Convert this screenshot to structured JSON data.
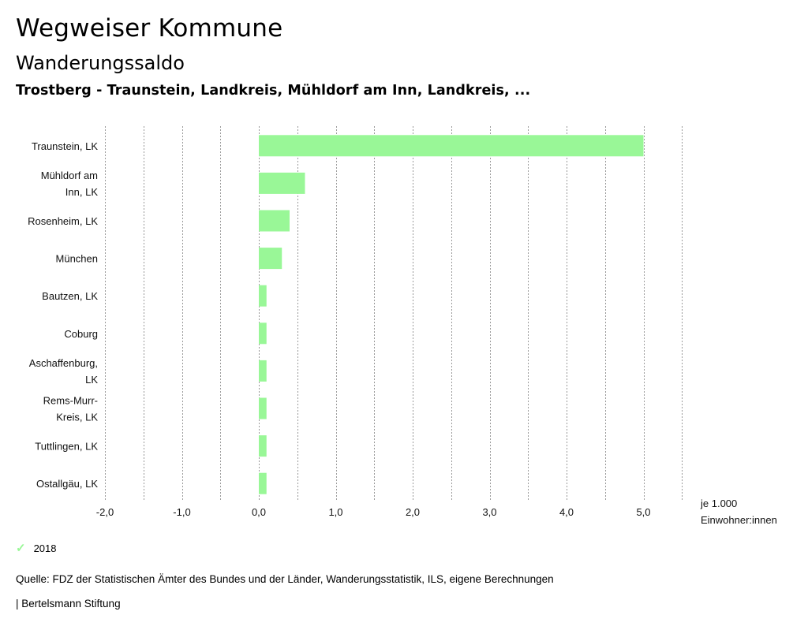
{
  "header": {
    "app_title": "Wegweiser Kommune",
    "chart_title": "Wanderungssaldo",
    "subtitle": "Trostberg - Traunstein, Landkreis, Mühldorf am Inn, Landkreis, ..."
  },
  "chart_data": {
    "type": "bar",
    "orientation": "horizontal",
    "title": "Wanderungssaldo",
    "categories": [
      [
        "Traunstein, LK"
      ],
      [
        "Mühldorf am",
        "Inn, LK"
      ],
      [
        "Rosenheim, LK"
      ],
      [
        "München"
      ],
      [
        "Bautzen, LK"
      ],
      [
        "Coburg"
      ],
      [
        "Aschaffenburg,",
        "LK"
      ],
      [
        "Rems-Murr-",
        "Kreis, LK"
      ],
      [
        "Tuttlingen, LK"
      ],
      [
        "Ostallgäu, LK"
      ]
    ],
    "series": [
      {
        "name": "2018",
        "values": [
          5.0,
          0.6,
          0.4,
          0.3,
          0.1,
          0.1,
          0.1,
          0.1,
          0.1,
          0.1
        ]
      }
    ],
    "xlim": [
      -2.0,
      5.5
    ],
    "ticks": [
      {
        "value": -2.0,
        "label": "-2,0"
      },
      {
        "value": -1.0,
        "label": "-1,0"
      },
      {
        "value": 0.0,
        "label": "0,0"
      },
      {
        "value": 1.0,
        "label": "1,0"
      },
      {
        "value": 2.0,
        "label": "2,0"
      },
      {
        "value": 3.0,
        "label": "3,0"
      },
      {
        "value": 4.0,
        "label": "4,0"
      },
      {
        "value": 5.0,
        "label": "5,0"
      }
    ],
    "xlabel": [
      "je 1.000",
      "Einwohner:innen"
    ],
    "ylabel": "",
    "grid": true,
    "gridlines_every": 0.5,
    "bar_color": "#99f797"
  },
  "legend": {
    "label": "2018",
    "color": "#99f797"
  },
  "source": "Quelle: FDZ der Statistischen Ämter des Bundes und der Länder, Wanderungsstatistik, ILS, eigene Berechnungen",
  "footer": "| Bertelsmann Stiftung"
}
